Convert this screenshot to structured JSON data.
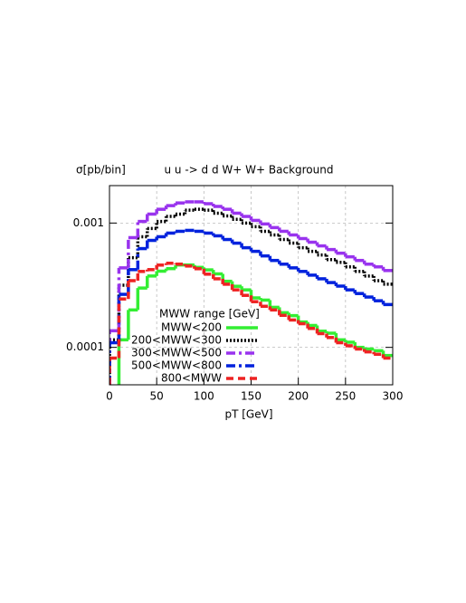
{
  "chart_data": {
    "type": "histogram",
    "title": "u u -> d d W+ W+ Background",
    "y_label": "σ[pb/bin]",
    "x_label": "pT [GeV]",
    "legend_title": "MWW range [GeV]",
    "bins": [
      0,
      10,
      20,
      30,
      40,
      50,
      60,
      70,
      80,
      90,
      100,
      110,
      120,
      130,
      140,
      150,
      160,
      170,
      180,
      190,
      200,
      210,
      220,
      230,
      240,
      250,
      260,
      270,
      280,
      290,
      300
    ],
    "series": [
      {
        "name": "MWW<200",
        "color": "#33ee33",
        "dash": "solid",
        "values": [
          null,
          0.000115,
          0.0002,
          0.0003,
          0.000375,
          0.00041,
          0.00043,
          0.00046,
          0.00046,
          0.00044,
          0.00042,
          0.00039,
          0.00034,
          0.00031,
          0.00029,
          0.00025,
          0.00024,
          0.00021,
          0.00019,
          0.00018,
          0.00016,
          0.00015,
          0.000135,
          0.00013,
          0.000115,
          0.00011,
          0.0001,
          9.7e-05,
          9.4e-05,
          8.6e-05
        ]
      },
      {
        "name": "200<MWW<300",
        "color": "#000000",
        "dash": "dotted",
        "values": [
          0.000115,
          0.000316,
          0.000526,
          0.000776,
          0.000903,
          0.00103,
          0.00113,
          0.00118,
          0.00127,
          0.00129,
          0.00127,
          0.0012,
          0.00114,
          0.00107,
          0.001,
          0.000935,
          0.000858,
          0.000802,
          0.000737,
          0.000689,
          0.000633,
          0.000592,
          0.000553,
          0.000508,
          0.000483,
          0.000444,
          0.000408,
          0.000375,
          0.000344,
          0.000322
        ]
      },
      {
        "name": "300<MWW<500",
        "color": "#9933ee",
        "dash": "dashdot",
        "values": [
          0.000136,
          0.000436,
          0.000763,
          0.00103,
          0.00118,
          0.00129,
          0.00138,
          0.00145,
          0.00148,
          0.00148,
          0.00143,
          0.00136,
          0.00129,
          0.0012,
          0.00113,
          0.00105,
          0.000983,
          0.000919,
          0.000858,
          0.000802,
          0.00075,
          0.000701,
          0.000655,
          0.000612,
          0.000572,
          0.000535,
          0.0005,
          0.000467,
          0.000444,
          0.000415
        ]
      },
      {
        "name": "500<MWW<800",
        "color": "#0022dd",
        "dash": "dashdot",
        "values": [
          0.000109,
          0.000267,
          0.000422,
          0.000623,
          0.000725,
          0.000776,
          0.00083,
          0.000858,
          0.000873,
          0.000858,
          0.00083,
          0.000789,
          0.000737,
          0.000689,
          0.000633,
          0.000592,
          0.000544,
          0.0005,
          0.000467,
          0.000436,
          0.000408,
          0.000381,
          0.000356,
          0.000332,
          0.000311,
          0.00029,
          0.000271,
          0.000254,
          0.000237,
          0.000221
        ]
      },
      {
        "name": "800<MWW",
        "color": "#ee2222",
        "dash": "dashed",
        "values": [
          8.2e-05,
          0.000245,
          0.000344,
          0.000408,
          0.000422,
          0.000459,
          0.000475,
          0.000467,
          0.000451,
          0.000429,
          0.000388,
          0.000356,
          0.000322,
          0.00029,
          0.000262,
          0.000233,
          0.000214,
          0.0002,
          0.000181,
          0.000166,
          0.000155,
          0.000142,
          0.000129,
          0.00012,
          0.000109,
          0.000103,
          9.7e-05,
          9.2e-05,
          8.8e-05,
          8.2e-05
        ]
      }
    ],
    "xlim": [
      0,
      300
    ],
    "xticks": [
      0,
      50,
      100,
      150,
      200,
      250,
      300
    ],
    "ylim": [
      5e-05,
      0.002
    ],
    "yticks": [
      0.0001,
      0.001
    ],
    "y_scale": "log",
    "grid": true,
    "legend": "lower left"
  }
}
